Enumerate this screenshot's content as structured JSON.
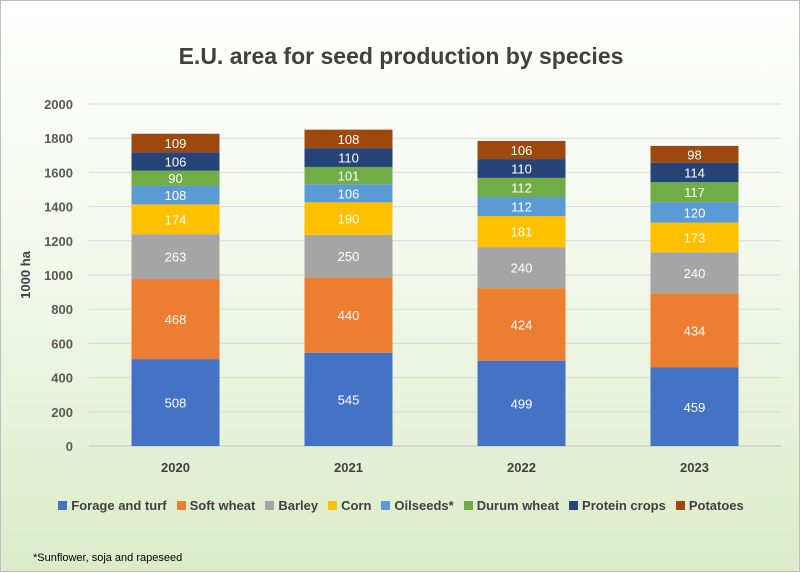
{
  "chart_data": {
    "type": "bar",
    "stacked": true,
    "title": "E.U. area for seed production by species",
    "ylabel": "1000 ha",
    "xlabel": "",
    "categories": [
      "2020",
      "2021",
      "2022",
      "2023"
    ],
    "ylim": [
      0,
      2000
    ],
    "yticks": [
      "0",
      "200",
      "400",
      "600",
      "800",
      "1000",
      "1200",
      "1400",
      "1600",
      "1800",
      "2000"
    ],
    "grid": true,
    "legend_position": "bottom",
    "series": [
      {
        "name": "Forage and turf",
        "color": "#4472c4",
        "values": [
          508,
          545,
          499,
          459
        ]
      },
      {
        "name": "Soft wheat",
        "color": "#ed7d31",
        "values": [
          468,
          440,
          424,
          434
        ]
      },
      {
        "name": "Barley",
        "color": "#a5a5a5",
        "values": [
          263,
          250,
          240,
          240
        ]
      },
      {
        "name": "Corn",
        "color": "#ffc000",
        "values": [
          174,
          190,
          181,
          173
        ]
      },
      {
        "name": "Oilseeds*",
        "color": "#5b9bd5",
        "values": [
          108,
          106,
          112,
          120
        ]
      },
      {
        "name": "Durum wheat",
        "color": "#70ad47",
        "values": [
          90,
          101,
          112,
          117
        ]
      },
      {
        "name": "Protein crops",
        "color": "#264478",
        "values": [
          106,
          110,
          110,
          114
        ]
      },
      {
        "name": "Potatoes",
        "color": "#9e480e",
        "values": [
          109,
          108,
          106,
          98
        ]
      }
    ]
  },
  "footnote": "*Sunflower, soja and rapeseed"
}
